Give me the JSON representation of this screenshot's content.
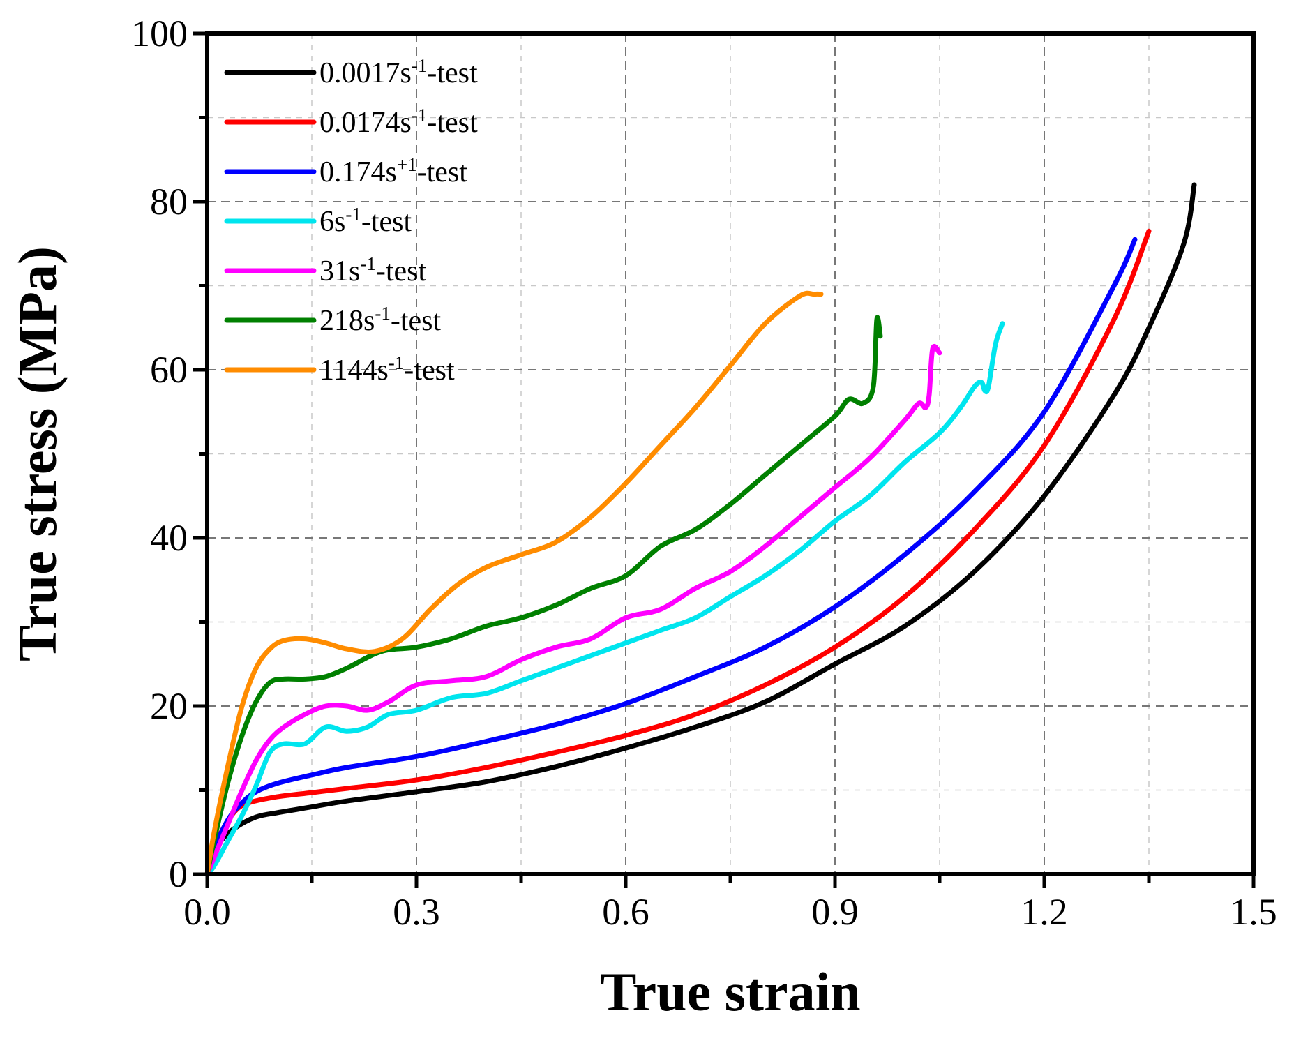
{
  "chart_data": {
    "type": "line",
    "title": "",
    "xlabel": "True strain",
    "ylabel": "True stress (MPa)",
    "xlim": [
      0.0,
      1.5
    ],
    "ylim": [
      0,
      100
    ],
    "xticks": [
      0.0,
      0.3,
      0.6,
      0.9,
      1.2,
      1.5
    ],
    "xtick_labels": [
      "0.0",
      "0.3",
      "0.6",
      "0.9",
      "1.2",
      "1.5"
    ],
    "yticks": [
      0,
      20,
      40,
      60,
      80,
      100
    ],
    "ytick_labels": [
      "0",
      "20",
      "40",
      "60",
      "80",
      "100"
    ],
    "grid": true,
    "legend_position": "top-left",
    "series": [
      {
        "name": "0.0017s-1-test",
        "legend": {
          "pre": "0.0017s",
          "sup": "-1",
          "post": "-test"
        },
        "color": "#000000",
        "x": [
          0.0,
          0.01,
          0.02,
          0.04,
          0.07,
          0.1,
          0.15,
          0.2,
          0.3,
          0.4,
          0.5,
          0.6,
          0.7,
          0.8,
          0.9,
          1.0,
          1.1,
          1.2,
          1.3,
          1.35,
          1.4,
          1.415
        ],
        "y": [
          0,
          2.5,
          4,
          5.5,
          6.8,
          7.3,
          8.0,
          8.7,
          9.8,
          11.0,
          12.8,
          15.0,
          17.5,
          20.5,
          25.0,
          29.5,
          36.0,
          45.0,
          57.0,
          65.0,
          75.0,
          82.0
        ]
      },
      {
        "name": "0.0174s-1-test",
        "legend": {
          "pre": "0.0174s",
          "sup": "-1",
          "post": "-test"
        },
        "color": "#ff0000",
        "x": [
          0.0,
          0.01,
          0.02,
          0.04,
          0.06,
          0.1,
          0.15,
          0.2,
          0.3,
          0.4,
          0.5,
          0.6,
          0.7,
          0.8,
          0.9,
          1.0,
          1.1,
          1.2,
          1.3,
          1.35
        ],
        "y": [
          0,
          3,
          5,
          7.5,
          8.5,
          9.2,
          9.7,
          10.2,
          11.2,
          12.7,
          14.5,
          16.5,
          19.0,
          22.5,
          27.0,
          33.0,
          41.0,
          51.0,
          66.0,
          76.5
        ]
      },
      {
        "name": "0.174s+1-test",
        "legend": {
          "pre": "0.174s",
          "sup": "+1",
          "post": "-test"
        },
        "color": "#0000ff",
        "x": [
          0.0,
          0.01,
          0.03,
          0.05,
          0.07,
          0.1,
          0.15,
          0.2,
          0.3,
          0.4,
          0.5,
          0.6,
          0.7,
          0.8,
          0.9,
          1.0,
          1.1,
          1.2,
          1.3,
          1.33
        ],
        "y": [
          0,
          3,
          6.5,
          8.5,
          9.8,
          10.8,
          11.8,
          12.7,
          14.0,
          15.8,
          17.8,
          20.3,
          23.5,
          27.0,
          31.8,
          38.0,
          45.5,
          55.0,
          70.0,
          75.5
        ]
      },
      {
        "name": "6s-1-test",
        "legend": {
          "pre": "6s",
          "sup": "-1",
          "post": "-test"
        },
        "color": "#00e5ee",
        "x": [
          0.0,
          0.01,
          0.03,
          0.05,
          0.07,
          0.09,
          0.11,
          0.14,
          0.17,
          0.2,
          0.23,
          0.26,
          0.3,
          0.35,
          0.4,
          0.45,
          0.5,
          0.55,
          0.6,
          0.65,
          0.7,
          0.75,
          0.8,
          0.85,
          0.9,
          0.95,
          1.0,
          1.05,
          1.08,
          1.1,
          1.11,
          1.115,
          1.12,
          1.13,
          1.14
        ],
        "y": [
          0,
          1,
          4,
          7,
          10.5,
          14.5,
          15.5,
          15.5,
          17.5,
          17,
          17.5,
          19,
          19.5,
          21,
          21.5,
          23,
          24.5,
          26,
          27.5,
          29,
          30.5,
          33,
          35.5,
          38.5,
          42,
          45,
          49,
          52.5,
          55.5,
          58,
          58.5,
          57.5,
          58,
          63,
          65.5
        ]
      },
      {
        "name": "31s-1-test",
        "legend": {
          "pre": "31s",
          "sup": "-1",
          "post": "-test"
        },
        "color": "#ff00ff",
        "x": [
          0.0,
          0.01,
          0.03,
          0.05,
          0.07,
          0.09,
          0.11,
          0.14,
          0.17,
          0.2,
          0.23,
          0.26,
          0.3,
          0.35,
          0.4,
          0.45,
          0.5,
          0.55,
          0.6,
          0.65,
          0.7,
          0.75,
          0.8,
          0.85,
          0.9,
          0.95,
          1.0,
          1.02,
          1.03,
          1.035,
          1.04,
          1.05
        ],
        "y": [
          0,
          2,
          6,
          10,
          13.5,
          16,
          17.5,
          19,
          20,
          20,
          19.5,
          20.5,
          22.5,
          23.0,
          23.5,
          25.5,
          27,
          28,
          30.5,
          31.5,
          34,
          36,
          39,
          42.5,
          46,
          49.5,
          54,
          56,
          55.5,
          57,
          62.5,
          62
        ]
      },
      {
        "name": "218s-1-test",
        "legend": {
          "pre": "218s",
          "sup": "-1",
          "post": "-test"
        },
        "color": "#008000",
        "x": [
          0.0,
          0.01,
          0.03,
          0.05,
          0.07,
          0.09,
          0.11,
          0.14,
          0.17,
          0.2,
          0.25,
          0.3,
          0.35,
          0.4,
          0.45,
          0.5,
          0.55,
          0.6,
          0.65,
          0.7,
          0.75,
          0.8,
          0.85,
          0.9,
          0.92,
          0.94,
          0.955,
          0.96,
          0.965
        ],
        "y": [
          0,
          4,
          11,
          16.5,
          20.5,
          22.8,
          23.2,
          23.2,
          23.5,
          24.5,
          26.5,
          27,
          28,
          29.5,
          30.5,
          32,
          34,
          35.5,
          39,
          41,
          44,
          47.5,
          51,
          54.5,
          56.5,
          56,
          58,
          66,
          64
        ]
      },
      {
        "name": "1144s-1-test",
        "legend": {
          "pre": "1144s",
          "sup": "-1",
          "post": "-test"
        },
        "color": "#ff8c00",
        "x": [
          0.0,
          0.01,
          0.03,
          0.05,
          0.07,
          0.09,
          0.11,
          0.14,
          0.17,
          0.2,
          0.24,
          0.28,
          0.32,
          0.36,
          0.4,
          0.45,
          0.5,
          0.55,
          0.6,
          0.65,
          0.7,
          0.75,
          0.8,
          0.85,
          0.87,
          0.88
        ],
        "y": [
          0,
          5,
          13,
          20,
          24.5,
          26.8,
          27.8,
          28,
          27.5,
          26.8,
          26.5,
          28,
          31.5,
          34.5,
          36.5,
          38,
          39.5,
          42.5,
          46.5,
          51,
          55.5,
          60.5,
          65.5,
          68.8,
          69,
          69
        ]
      }
    ]
  }
}
